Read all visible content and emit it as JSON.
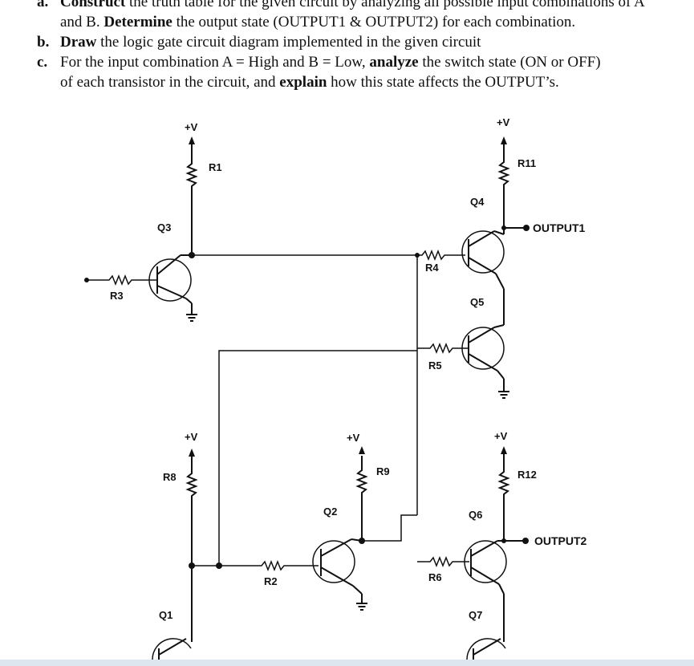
{
  "questions": {
    "a": {
      "letter": "a.",
      "line1_bold": "Construct",
      "line1_rest": " the truth table for the given circuit by analyzing all possible input combinations of A",
      "line2_pre": "and B. ",
      "line2_bold": "Determine",
      "line2_rest": " the output state (OUTPUT1 & OUTPUT2) for each combination."
    },
    "b": {
      "letter": "b.",
      "bold": "Draw",
      "rest": " the logic gate circuit diagram implemented in the given circuit"
    },
    "c": {
      "letter": "c.",
      "line1_pre": "For the input combination A = High and B = Low, ",
      "line1_bold": "analyze",
      "line1_rest": " the switch state (ON or OFF)",
      "line2_pre": "of each transistor in the circuit, and ",
      "line2_bold": "explain",
      "line2_rest": " how this state affects the OUTPUT’s."
    }
  },
  "circuit": {
    "supply_label": "+V",
    "resistors": {
      "r1": "R1",
      "r2": "R2",
      "r3": "R3",
      "r4": "R4",
      "r5": "R5",
      "r6": "R6",
      "r8": "R8",
      "r9": "R9",
      "r11": "R11",
      "r12": "R12"
    },
    "transistors": {
      "q1": "Q1",
      "q2": "Q2",
      "q3": "Q3",
      "q4": "Q4",
      "q5": "Q5",
      "q6": "Q6",
      "q7": "Q7"
    },
    "outputs": {
      "output1": "OUTPUT1",
      "output2": "OUTPUT2"
    }
  }
}
